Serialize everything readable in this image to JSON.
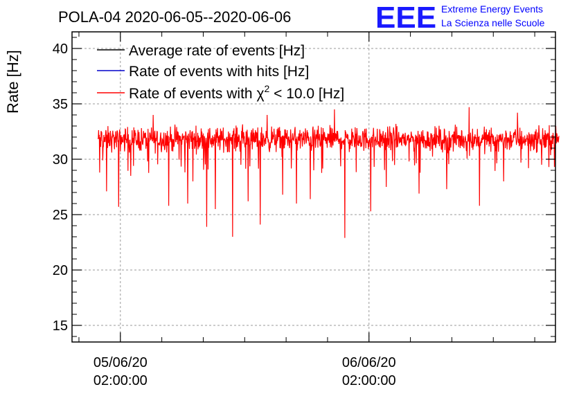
{
  "header": {
    "title": "POLA-04 2020-06-05--2020-06-06",
    "logo_mark": "EEE",
    "logo_line1": "Extreme Energy Events",
    "logo_line2": "La Scienza nelle Scuole"
  },
  "colors": {
    "average": "#000000",
    "hits": "#0000cc",
    "chi2": "#ff0000",
    "grid": "#999999",
    "logo": "#1a1aff"
  },
  "chart_data": {
    "type": "line",
    "title": "POLA-04 2020-06-05--2020-06-06",
    "ylabel": "Rate [Hz]",
    "xlabel": "",
    "ylim": [
      13.5,
      41.5
    ],
    "yticks": [
      15,
      20,
      25,
      30,
      35,
      40
    ],
    "x_range": [
      "2020-06-04 21:20:00",
      "2020-06-06 20:00:00"
    ],
    "x_ticks": [
      {
        "value": "2020-06-05 02:00:00",
        "label_date": "05/06/20",
        "label_time": "02:00:00"
      },
      {
        "value": "2020-06-06 02:00:00",
        "label_date": "06/06/20",
        "label_time": "02:00:00"
      }
    ],
    "grid": true,
    "legend_position": "top-left",
    "series": [
      {
        "name": "Average rate of events [Hz]",
        "color": "#000000",
        "values": []
      },
      {
        "name": "Rate of events with hits [Hz]",
        "color": "#0000cc",
        "values": []
      },
      {
        "name": "Rate of events with χ² < 10.0 [Hz]",
        "name_prefix": "Rate of events with ",
        "name_chi": "χ",
        "name_sup": "2",
        "name_suffix": " < 10.0 [Hz]",
        "color": "#ff0000",
        "x_start": "2020-06-04 23:50:00",
        "x_end": "2020-06-06 20:20:00",
        "sample_interval_min": 2,
        "mean": 31.8,
        "noise_min": 30.2,
        "noise_max": 33.4,
        "dips": [
          {
            "x": "2020-06-05 00:00:00",
            "value": 28.8
          },
          {
            "x": "2020-06-05 00:40:00",
            "value": 27.1
          },
          {
            "x": "2020-06-05 01:50:00",
            "value": 25.7
          },
          {
            "x": "2020-06-05 03:00:00",
            "value": 28.5
          },
          {
            "x": "2020-06-05 06:40:00",
            "value": 25.8
          },
          {
            "x": "2020-06-05 08:30:00",
            "value": 26.0
          },
          {
            "x": "2020-06-05 09:00:00",
            "value": 28.0
          },
          {
            "x": "2020-06-05 10:20:00",
            "value": 23.9
          },
          {
            "x": "2020-06-05 11:10:00",
            "value": 25.5
          },
          {
            "x": "2020-06-05 12:50:00",
            "value": 23.0
          },
          {
            "x": "2020-06-05 14:20:00",
            "value": 26.2
          },
          {
            "x": "2020-06-05 15:30:00",
            "value": 24.1
          },
          {
            "x": "2020-06-05 17:40:00",
            "value": 26.8
          },
          {
            "x": "2020-06-05 19:00:00",
            "value": 26.0
          },
          {
            "x": "2020-06-05 20:20:00",
            "value": 26.4
          },
          {
            "x": "2020-06-05 23:40:00",
            "value": 22.9
          },
          {
            "x": "2020-06-06 02:10:00",
            "value": 25.3
          },
          {
            "x": "2020-06-06 03:40:00",
            "value": 27.5
          },
          {
            "x": "2020-06-06 06:50:00",
            "value": 26.9
          },
          {
            "x": "2020-06-06 09:30:00",
            "value": 27.3
          },
          {
            "x": "2020-06-06 12:40:00",
            "value": 25.8
          },
          {
            "x": "2020-06-06 15:00:00",
            "value": 28.0
          },
          {
            "x": "2020-06-06 18:40:00",
            "value": 29.5
          }
        ],
        "peaks": [
          {
            "x": "2020-06-05 05:10:00",
            "value": 34.0
          },
          {
            "x": "2020-06-05 16:10:00",
            "value": 34.0
          },
          {
            "x": "2020-06-05 22:40:00",
            "value": 34.5
          },
          {
            "x": "2020-06-06 11:40:00",
            "value": 34.7
          },
          {
            "x": "2020-06-06 16:20:00",
            "value": 34.2
          }
        ]
      }
    ]
  }
}
